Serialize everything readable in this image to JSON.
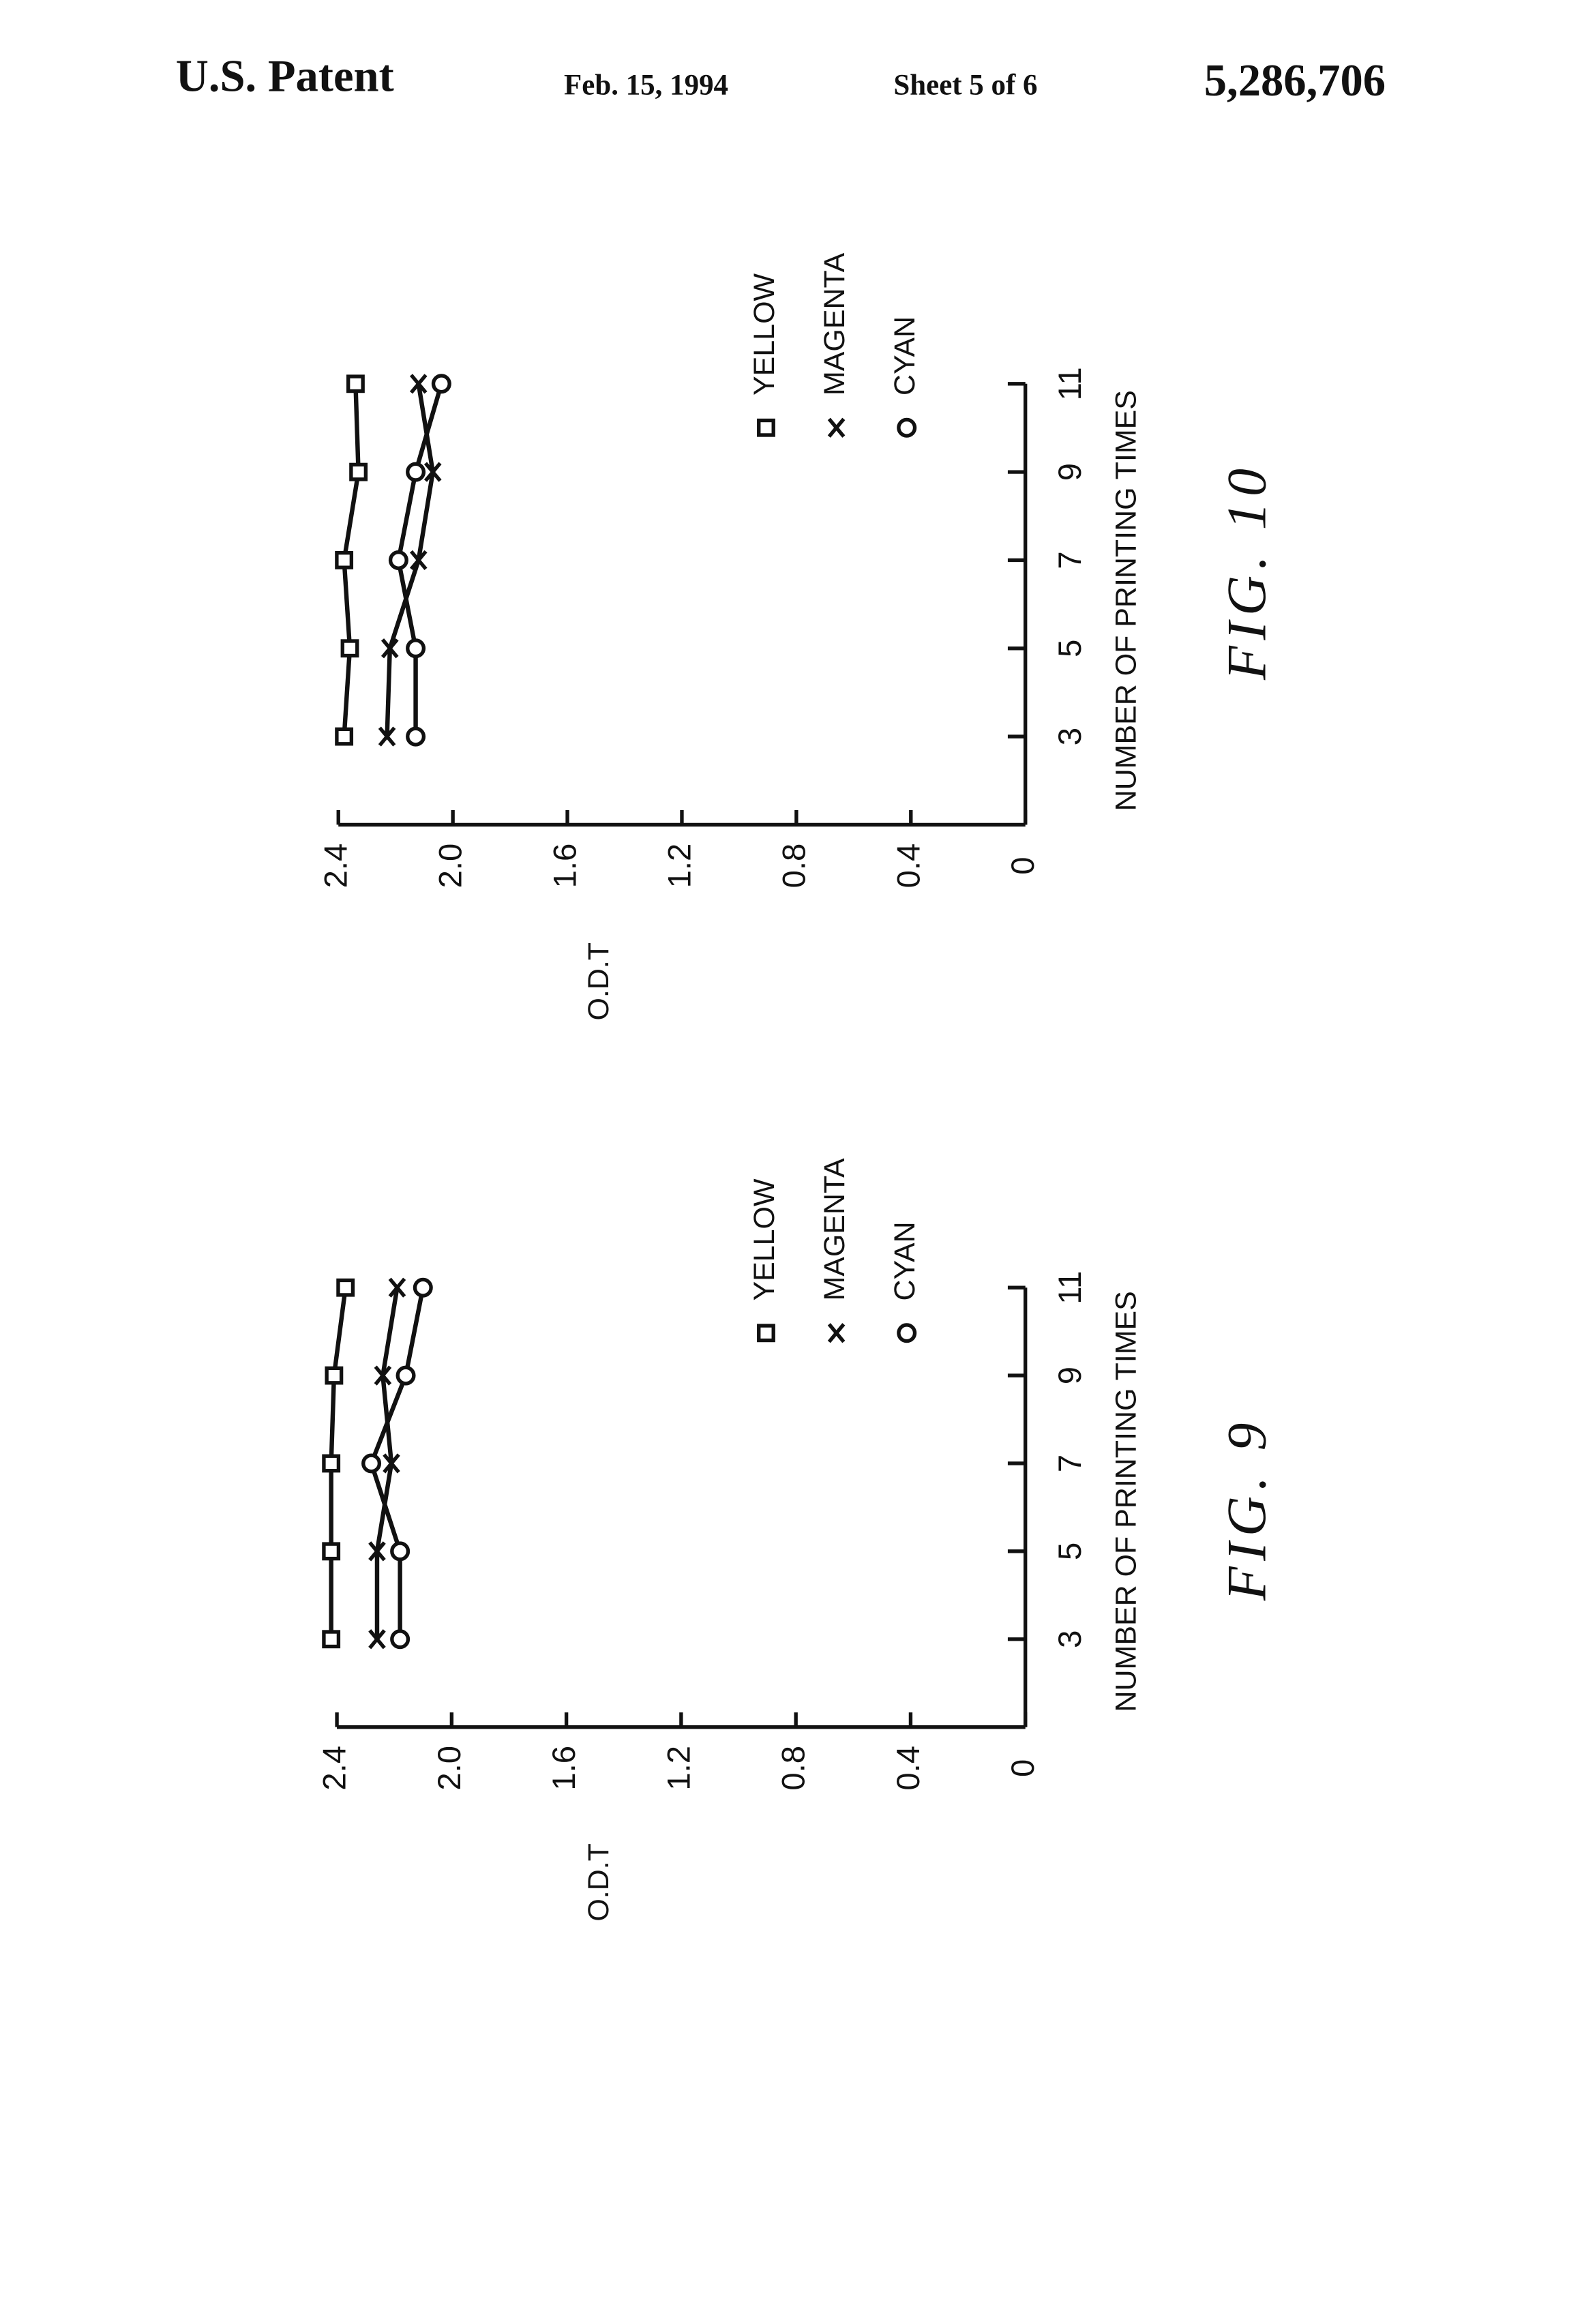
{
  "header": {
    "left": "U.S. Patent",
    "date": "Feb. 15, 1994",
    "sheet": "Sheet 5 of 6",
    "number": "5,286,706"
  },
  "chart_data": [
    {
      "type": "line",
      "title": "FIG. 10",
      "x_label": "NUMBER OF PRINTING TIMES",
      "y_label": "O.D.T",
      "x": [
        3,
        5,
        7,
        9,
        11
      ],
      "xlim": [
        1,
        11
      ],
      "xticks": [
        3,
        5,
        7,
        9,
        11
      ],
      "ylim": [
        0,
        2.4
      ],
      "yticks": [
        0,
        0.4,
        0.8,
        1.2,
        1.6,
        {
          "value": 2,
          "label": "2.0"
        },
        2.4
      ],
      "series": [
        {
          "name": "YELLOW",
          "color": "#111111",
          "marker": "square",
          "values": [
            2.38,
            2.36,
            2.38,
            2.33,
            2.34
          ]
        },
        {
          "name": "MAGENTA",
          "color": "#111111",
          "marker": "x",
          "values": [
            2.23,
            2.22,
            2.12,
            2.07,
            2.12
          ]
        },
        {
          "name": "CYAN",
          "color": "#111111",
          "marker": "circle",
          "values": [
            2.13,
            2.13,
            2.19,
            2.13,
            2.04
          ]
        }
      ]
    },
    {
      "type": "line",
      "title": "FIG. 9",
      "x_label": "NUMBER OF PRINTING TIMES",
      "y_label": "O.D.T",
      "x": [
        3,
        5,
        7,
        9,
        11
      ],
      "xlim": [
        1,
        11
      ],
      "xticks": [
        3,
        5,
        7,
        9,
        11
      ],
      "ylim": [
        0,
        2.4
      ],
      "yticks": [
        0,
        0.4,
        0.8,
        1.2,
        1.6,
        {
          "value": 2,
          "label": "2.0"
        },
        2.4
      ],
      "series": [
        {
          "name": "YELLOW",
          "color": "#111111",
          "marker": "square",
          "values": [
            2.42,
            2.42,
            2.42,
            2.41,
            2.37
          ]
        },
        {
          "name": "MAGENTA",
          "color": "#111111",
          "marker": "x",
          "values": [
            2.26,
            2.26,
            2.21,
            2.24,
            2.19
          ]
        },
        {
          "name": "CYAN",
          "color": "#111111",
          "marker": "circle",
          "values": [
            2.18,
            2.18,
            2.28,
            2.16,
            2.1
          ]
        }
      ]
    }
  ]
}
